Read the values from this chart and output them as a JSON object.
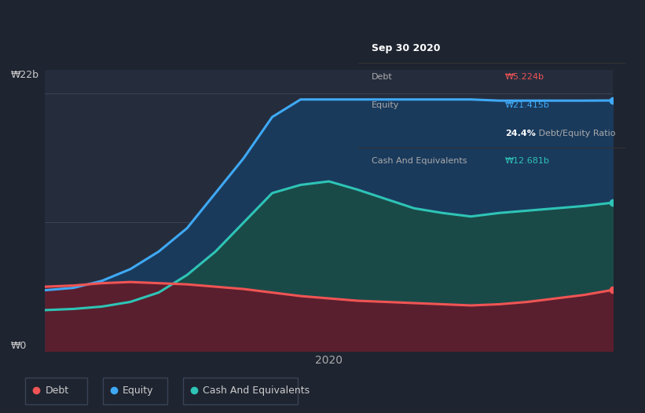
{
  "background_color": "#1e2430",
  "plot_bg_color": "#252d3d",
  "tooltip": {
    "date": "Sep 30 2020",
    "debt_label": "Debt",
    "debt_value": "₩5.224b",
    "equity_label": "Equity",
    "equity_value": "₩21.415b",
    "ratio_bold": "24.4%",
    "ratio_rest": " Debt/Equity Ratio",
    "cash_label": "Cash And Equivalents",
    "cash_value": "₩12.681b"
  },
  "ylabel_top": "₩22b",
  "ylabel_bottom": "₩0",
  "xlabel": "2020",
  "legend": [
    {
      "label": "Debt",
      "color": "#f05454"
    },
    {
      "label": "Equity",
      "color": "#3fa9f5"
    },
    {
      "label": "Cash And Equivalents",
      "color": "#2ec4b6"
    }
  ],
  "debt_color": "#f05454",
  "equity_color": "#3fa9f5",
  "cash_color": "#2ec4b6",
  "debt_fill_color": "#5a1f2e",
  "equity_fill_color": "#1a3a5c",
  "cash_fill_color": "#1a4a48",
  "x": [
    0,
    1,
    2,
    3,
    4,
    5,
    6,
    7,
    8,
    9,
    10,
    11,
    12,
    13,
    14,
    15,
    16,
    17,
    18,
    19,
    20
  ],
  "debt": [
    5.5,
    5.6,
    5.8,
    5.9,
    5.8,
    5.7,
    5.5,
    5.3,
    5.0,
    4.7,
    4.5,
    4.3,
    4.2,
    4.1,
    4.0,
    3.9,
    4.0,
    4.2,
    4.5,
    4.8,
    5.224
  ],
  "equity": [
    5.2,
    5.4,
    6.0,
    7.0,
    8.5,
    10.5,
    13.5,
    16.5,
    20.0,
    21.5,
    21.5,
    21.5,
    21.5,
    21.5,
    21.5,
    21.5,
    21.4,
    21.4,
    21.4,
    21.4,
    21.415
  ],
  "cash": [
    3.5,
    3.6,
    3.8,
    4.2,
    5.0,
    6.5,
    8.5,
    11.0,
    13.5,
    14.2,
    14.5,
    13.8,
    13.0,
    12.2,
    11.8,
    11.5,
    11.8,
    12.0,
    12.2,
    12.4,
    12.681
  ],
  "ylim": [
    0,
    24
  ]
}
